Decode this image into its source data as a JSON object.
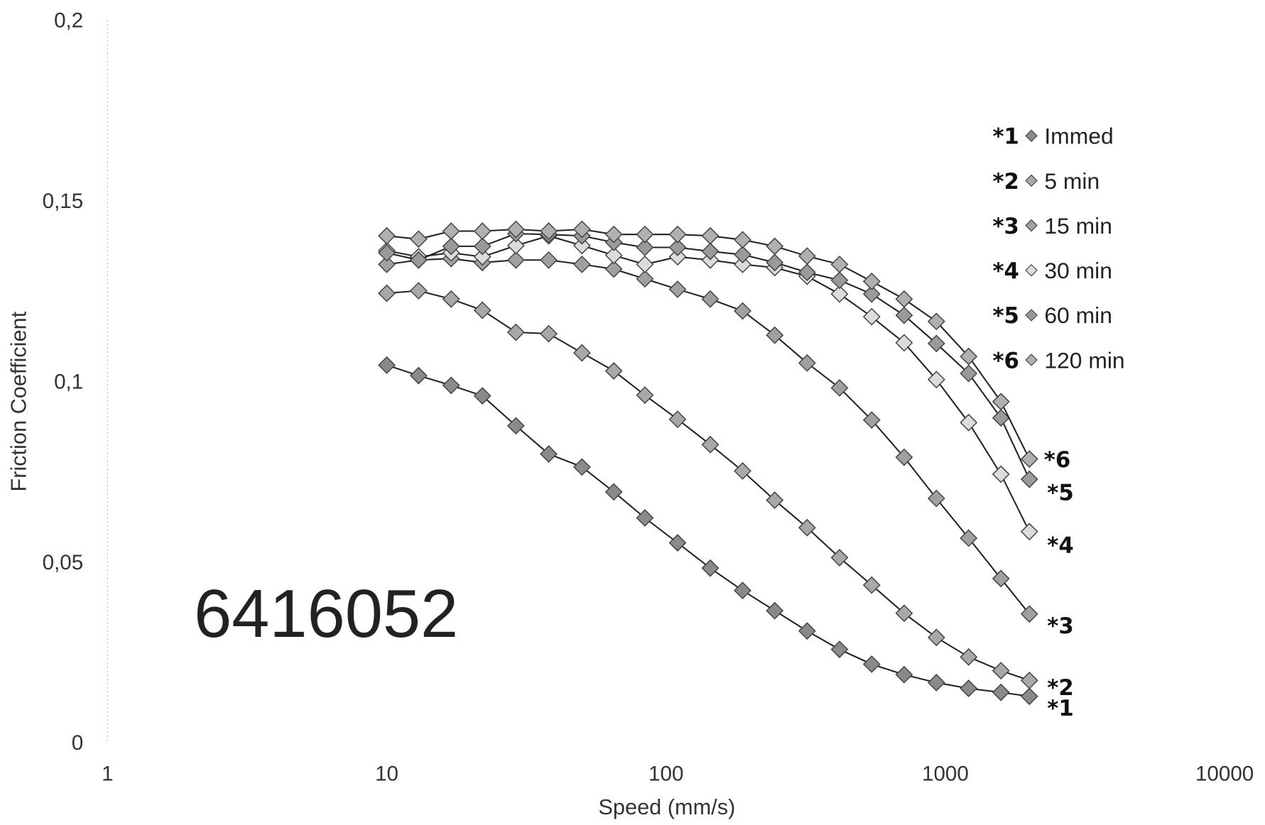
{
  "chart_data": {
    "type": "line",
    "title": "",
    "xlabel": "Speed (mm/s)",
    "ylabel": "Friction Coefficient",
    "xscale": "log",
    "xlim": [
      1,
      10000
    ],
    "ylim": [
      0,
      0.2
    ],
    "xticks": [
      "1",
      "10",
      "100",
      "1000",
      "10000"
    ],
    "yticks": [
      "0",
      "0,05",
      "0,1",
      "0,15",
      "0,2"
    ],
    "ytick_values": [
      0,
      0.05,
      0.1,
      0.15,
      0.2
    ],
    "xtick_values": [
      1,
      10,
      100,
      1000,
      10000
    ],
    "annotation": "6416052",
    "legend_position": "right",
    "x": [
      10,
      13,
      17,
      22,
      29,
      38,
      50,
      65,
      84,
      110,
      144,
      188,
      245,
      320,
      418,
      545,
      712,
      929,
      1212,
      1582,
      2000
    ],
    "series": [
      {
        "marker": "*1",
        "name": "Immed",
        "end_label": "*1",
        "color": "#8a8a8a",
        "values": [
          0.1045,
          0.1016,
          0.0989,
          0.096,
          0.0877,
          0.0799,
          0.0763,
          0.0694,
          0.0622,
          0.0553,
          0.0483,
          0.0421,
          0.0365,
          0.0309,
          0.0258,
          0.0217,
          0.0188,
          0.0166,
          0.015,
          0.0139,
          0.0128
        ]
      },
      {
        "marker": "*2",
        "name": "5 min",
        "end_label": "*2",
        "color": "#a8a8a8",
        "values": [
          0.1244,
          0.1251,
          0.1228,
          0.1197,
          0.1136,
          0.1132,
          0.1079,
          0.1029,
          0.0962,
          0.0895,
          0.0825,
          0.0752,
          0.0671,
          0.0595,
          0.0512,
          0.0436,
          0.0358,
          0.0291,
          0.0237,
          0.0199,
          0.0172
        ]
      },
      {
        "marker": "*3",
        "name": "15 min",
        "end_label": "*3",
        "color": "#a0a0a0",
        "values": [
          0.1324,
          0.1336,
          0.134,
          0.1329,
          0.1336,
          0.1336,
          0.1324,
          0.1311,
          0.1284,
          0.1255,
          0.1228,
          0.1195,
          0.1128,
          0.1051,
          0.0982,
          0.0893,
          0.079,
          0.0676,
          0.0566,
          0.0454,
          0.0356
        ]
      },
      {
        "marker": "*4",
        "name": "30 min",
        "end_label": "*4",
        "color": "#dcdcdc",
        "values": [
          0.1362,
          0.1345,
          0.1356,
          0.1345,
          0.1376,
          0.1403,
          0.1376,
          0.1349,
          0.1324,
          0.1345,
          0.1336,
          0.1324,
          0.1315,
          0.1291,
          0.1242,
          0.1179,
          0.1107,
          0.1005,
          0.0886,
          0.0743,
          0.0584
        ]
      },
      {
        "marker": "*5",
        "name": "60 min",
        "end_label": "*5",
        "color": "#9a9a9a",
        "values": [
          0.1356,
          0.1336,
          0.1374,
          0.1374,
          0.1409,
          0.1407,
          0.1403,
          0.1385,
          0.1371,
          0.1371,
          0.136,
          0.1351,
          0.1329,
          0.1302,
          0.128,
          0.1242,
          0.1183,
          0.1105,
          0.1022,
          0.0899,
          0.0729
        ]
      },
      {
        "marker": "*6",
        "name": "120 min",
        "end_label": "*6",
        "color": "#b0b0b0",
        "values": [
          0.1403,
          0.1394,
          0.1416,
          0.1416,
          0.1421,
          0.1416,
          0.1421,
          0.1407,
          0.1407,
          0.1407,
          0.1403,
          0.1392,
          0.1374,
          0.1347,
          0.1324,
          0.1277,
          0.1228,
          0.1166,
          0.1069,
          0.0944,
          0.0785
        ]
      }
    ]
  }
}
